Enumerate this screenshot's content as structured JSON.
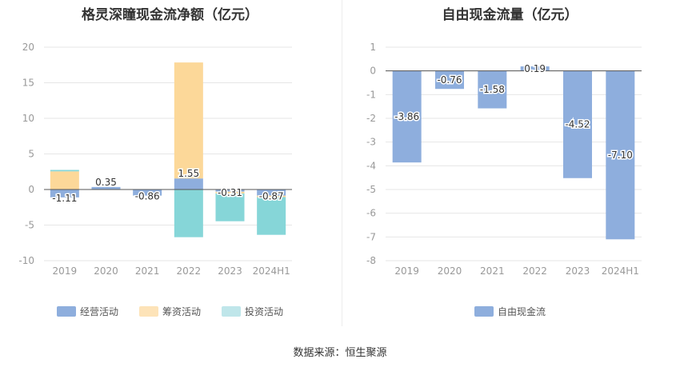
{
  "source_text": "数据来源：恒生聚源",
  "chart_data": [
    {
      "type": "bar",
      "stacked": true,
      "title": "格灵深瞳现金流净额（亿元）",
      "categories": [
        "2019",
        "2020",
        "2021",
        "2022",
        "2023",
        "2024H1"
      ],
      "series": [
        {
          "name": "经营活动",
          "color": "#8eaedd",
          "values": [
            -1.11,
            0.35,
            -0.86,
            1.55,
            -0.31,
            -0.87
          ],
          "labels": [
            "-1.11",
            "0.35",
            "-0.86",
            "1.55",
            "-0.31",
            "-0.87"
          ]
        },
        {
          "name": "筹资活动",
          "color": "#fcd899",
          "values": [
            2.55,
            0.0,
            0.0,
            16.3,
            -0.25,
            -0.2
          ]
        },
        {
          "name": "投资活动",
          "color": "#86d6d8",
          "values": [
            0.2,
            0.0,
            0.0,
            -6.7,
            -3.9,
            -5.3
          ]
        }
      ],
      "legend_colors": [
        "#8eaedd",
        "#fde3b8",
        "#bfe6ea"
      ],
      "ylim": [
        -10,
        20
      ],
      "yticks": [
        "20",
        "15",
        "10",
        "5",
        "0",
        "-5",
        "-10"
      ],
      "grid": true,
      "legend": "bottom"
    },
    {
      "type": "bar",
      "title": "自由现金流量（亿元）",
      "categories": [
        "2019",
        "2020",
        "2021",
        "2022",
        "2023",
        "2024H1"
      ],
      "series": [
        {
          "name": "自由现金流",
          "color": "#8eaedd",
          "values": [
            -3.86,
            -0.76,
            -1.58,
            0.19,
            -4.52,
            -7.1
          ],
          "labels": [
            "-3.86",
            "-0.76",
            "-1.58",
            "0.19",
            "-4.52",
            "-7.10"
          ]
        }
      ],
      "ylim": [
        -8,
        1
      ],
      "yticks": [
        "1",
        "0",
        "-1",
        "-2",
        "-3",
        "-4",
        "-5",
        "-6",
        "-7",
        "-8"
      ],
      "grid": true,
      "legend": "bottom"
    }
  ]
}
